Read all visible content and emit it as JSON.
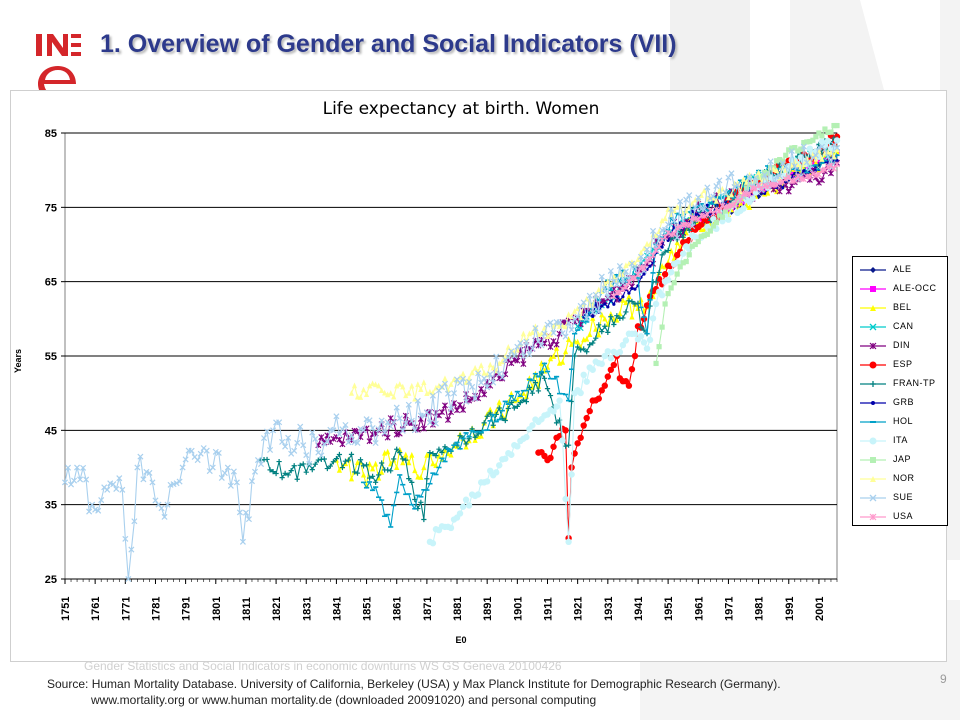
{
  "slide": {
    "title": "1. Overview of Gender and Social Indicators (VII)",
    "logo_text": "INE",
    "footer_note": "Gender Statistics and Social Indicators in economic downturns WS GS Geneva 20100426",
    "source_line1": "Source: Human Mortality Database. University of California, Berkeley (USA) y Max Planck Institute for Demographic Research (Germany).",
    "source_line2": "www.mortality.org or www.human  mortality.de (downloaded 20091020) and personal computing",
    "page_number": "9"
  },
  "chart_data": {
    "type": "line",
    "title": "Life expectancy at birth. Women",
    "xlabel": "E0",
    "ylabel": "Years",
    "xlim": [
      1751,
      2007
    ],
    "ylim": [
      25,
      85
    ],
    "yticks": [
      25,
      35,
      45,
      55,
      65,
      75,
      85
    ],
    "xticks": [
      "1751",
      "1761",
      "1771",
      "1781",
      "1791",
      "1801",
      "1811",
      "1821",
      "1831",
      "1841",
      "1851",
      "1861",
      "1871",
      "1881",
      "1891",
      "1901",
      "1911",
      "1921",
      "1931",
      "1941",
      "1951",
      "1961",
      "1971",
      "1981",
      "1991",
      "2001"
    ],
    "grid": "horizontal",
    "legend_position": "right",
    "series": [
      {
        "name": "ALE",
        "color": "#0a1a8c",
        "marker": "diamond",
        "start": 1956,
        "end": 2007,
        "anchors": [
          [
            1956,
            72
          ],
          [
            1970,
            74
          ],
          [
            1980,
            76.5
          ],
          [
            1990,
            78.5
          ],
          [
            2000,
            80.5
          ],
          [
            2007,
            82.3
          ]
        ],
        "noise": 0.3
      },
      {
        "name": "ALE-OCC",
        "color": "#ff00ff",
        "marker": "square",
        "start": 1956,
        "end": 2007,
        "anchors": [
          [
            1956,
            72.5
          ],
          [
            1970,
            74.5
          ],
          [
            1980,
            77
          ],
          [
            1990,
            79
          ],
          [
            2000,
            81.2
          ],
          [
            2007,
            82.5
          ]
        ],
        "noise": 0.3
      },
      {
        "name": "BEL",
        "color": "#ffff00",
        "marker": "triangle",
        "start": 1841,
        "end": 2007,
        "anchors": [
          [
            1841,
            41
          ],
          [
            1850,
            39
          ],
          [
            1860,
            41
          ],
          [
            1870,
            40
          ],
          [
            1880,
            43
          ],
          [
            1890,
            46
          ],
          [
            1900,
            49
          ],
          [
            1910,
            53
          ],
          [
            1920,
            57
          ],
          [
            1930,
            60
          ],
          [
            1940,
            62
          ],
          [
            1946,
            63
          ],
          [
            1950,
            67
          ],
          [
            1960,
            73
          ],
          [
            1970,
            75
          ],
          [
            1980,
            76.5
          ],
          [
            1990,
            79
          ],
          [
            2000,
            81
          ],
          [
            2007,
            82.5
          ]
        ],
        "noise": 1.6
      },
      {
        "name": "CAN",
        "color": "#00cccc",
        "marker": "x",
        "start": 1921,
        "end": 2007,
        "anchors": [
          [
            1921,
            59
          ],
          [
            1930,
            62
          ],
          [
            1940,
            66
          ],
          [
            1950,
            71
          ],
          [
            1960,
            74
          ],
          [
            1970,
            76.5
          ],
          [
            1980,
            79
          ],
          [
            1990,
            80.8
          ],
          [
            2000,
            82
          ],
          [
            2007,
            83
          ]
        ],
        "noise": 0.6
      },
      {
        "name": "DIN",
        "color": "#800080",
        "marker": "star",
        "start": 1835,
        "end": 2007,
        "anchors": [
          [
            1835,
            43
          ],
          [
            1845,
            44
          ],
          [
            1855,
            45
          ],
          [
            1865,
            46
          ],
          [
            1875,
            47
          ],
          [
            1885,
            49
          ],
          [
            1895,
            52
          ],
          [
            1905,
            56
          ],
          [
            1915,
            58
          ],
          [
            1925,
            61
          ],
          [
            1935,
            64
          ],
          [
            1945,
            68
          ],
          [
            1950,
            71
          ],
          [
            1960,
            74
          ],
          [
            1970,
            76
          ],
          [
            1980,
            77.5
          ],
          [
            1990,
            78
          ],
          [
            2000,
            79
          ],
          [
            2007,
            81
          ]
        ],
        "noise": 1.3
      },
      {
        "name": "ESP",
        "color": "#ff0000",
        "marker": "circle",
        "start": 1908,
        "end": 2007,
        "anchors": [
          [
            1908,
            42
          ],
          [
            1911,
            41
          ],
          [
            1914,
            44
          ],
          [
            1917,
            45
          ],
          [
            1918,
            30.5
          ],
          [
            1919,
            40
          ],
          [
            1922,
            44
          ],
          [
            1926,
            49
          ],
          [
            1930,
            51
          ],
          [
            1934,
            55
          ],
          [
            1935,
            52
          ],
          [
            1938,
            51
          ],
          [
            1940,
            55
          ],
          [
            1941,
            59
          ],
          [
            1943,
            60
          ],
          [
            1945,
            63
          ],
          [
            1947,
            64
          ],
          [
            1950,
            66
          ],
          [
            1955,
            69
          ],
          [
            1960,
            72
          ],
          [
            1965,
            73.5
          ],
          [
            1970,
            75
          ],
          [
            1980,
            78.5
          ],
          [
            1990,
            80.5
          ],
          [
            2000,
            82.5
          ],
          [
            2007,
            84.5
          ]
        ],
        "noise": 0.8
      },
      {
        "name": "FRAN-TP",
        "color": "#008080",
        "marker": "plus",
        "start": 1816,
        "end": 2007,
        "anchors": [
          [
            1816,
            41
          ],
          [
            1825,
            39
          ],
          [
            1835,
            41
          ],
          [
            1845,
            41
          ],
          [
            1855,
            39
          ],
          [
            1862,
            42
          ],
          [
            1866,
            38
          ],
          [
            1870,
            33
          ],
          [
            1872,
            42
          ],
          [
            1880,
            43
          ],
          [
            1890,
            46
          ],
          [
            1900,
            48
          ],
          [
            1910,
            52
          ],
          [
            1914,
            46
          ],
          [
            1918,
            43
          ],
          [
            1920,
            55
          ],
          [
            1930,
            59
          ],
          [
            1940,
            62
          ],
          [
            1944,
            58
          ],
          [
            1946,
            65
          ],
          [
            1950,
            69
          ],
          [
            1960,
            73
          ],
          [
            1970,
            75.5
          ],
          [
            1980,
            78
          ],
          [
            1990,
            80.5
          ],
          [
            2000,
            82.5
          ],
          [
            2007,
            84.2
          ]
        ],
        "noise": 1.2
      },
      {
        "name": "GRB",
        "color": "#0000aa",
        "marker": "dot",
        "start": 1922,
        "end": 2007,
        "anchors": [
          [
            1922,
            60
          ],
          [
            1930,
            62
          ],
          [
            1940,
            64
          ],
          [
            1950,
            71
          ],
          [
            1960,
            74
          ],
          [
            1970,
            75.5
          ],
          [
            1980,
            77
          ],
          [
            1990,
            78.5
          ],
          [
            2000,
            80
          ],
          [
            2007,
            81.3
          ]
        ],
        "noise": 0.8
      },
      {
        "name": "HOL",
        "color": "#00a0c8",
        "marker": "dash",
        "start": 1850,
        "end": 2007,
        "anchors": [
          [
            1850,
            38
          ],
          [
            1855,
            36
          ],
          [
            1859,
            32
          ],
          [
            1862,
            39
          ],
          [
            1866,
            35
          ],
          [
            1870,
            37
          ],
          [
            1875,
            40
          ],
          [
            1880,
            43
          ],
          [
            1890,
            45
          ],
          [
            1900,
            49
          ],
          [
            1910,
            54
          ],
          [
            1918,
            49
          ],
          [
            1920,
            58
          ],
          [
            1930,
            64
          ],
          [
            1940,
            67
          ],
          [
            1944,
            58
          ],
          [
            1947,
            70
          ],
          [
            1950,
            72
          ],
          [
            1960,
            75
          ],
          [
            1970,
            76.5
          ],
          [
            1980,
            79
          ],
          [
            1990,
            80.3
          ],
          [
            2000,
            80.7
          ],
          [
            2007,
            82
          ]
        ],
        "noise": 1.1
      },
      {
        "name": "ITA",
        "color": "#c8f4fa",
        "marker": "circle",
        "start": 1872,
        "end": 2007,
        "anchors": [
          [
            1872,
            30
          ],
          [
            1880,
            33
          ],
          [
            1890,
            38
          ],
          [
            1900,
            43
          ],
          [
            1910,
            47
          ],
          [
            1915,
            49
          ],
          [
            1918,
            30
          ],
          [
            1920,
            50
          ],
          [
            1930,
            55
          ],
          [
            1940,
            58
          ],
          [
            1944,
            56
          ],
          [
            1947,
            62
          ],
          [
            1950,
            65
          ],
          [
            1960,
            71
          ],
          [
            1970,
            74
          ],
          [
            1980,
            77
          ],
          [
            1990,
            80
          ],
          [
            2000,
            82.5
          ],
          [
            2007,
            84
          ]
        ],
        "noise": 1.0
      },
      {
        "name": "JAP",
        "color": "#b4f0b4",
        "marker": "square",
        "start": 1947,
        "end": 2007,
        "anchors": [
          [
            1947,
            54
          ],
          [
            1950,
            62
          ],
          [
            1955,
            67
          ],
          [
            1960,
            70
          ],
          [
            1970,
            74.5
          ],
          [
            1980,
            78.5
          ],
          [
            1990,
            82
          ],
          [
            2000,
            84.5
          ],
          [
            2007,
            86
          ]
        ],
        "noise": 0.5
      },
      {
        "name": "NOR",
        "color": "#ffff99",
        "marker": "triangle",
        "start": 1846,
        "end": 2007,
        "anchors": [
          [
            1846,
            50
          ],
          [
            1855,
            51
          ],
          [
            1865,
            50
          ],
          [
            1875,
            51
          ],
          [
            1885,
            52
          ],
          [
            1895,
            54
          ],
          [
            1905,
            58
          ],
          [
            1915,
            59
          ],
          [
            1925,
            62
          ],
          [
            1935,
            66
          ],
          [
            1945,
            70
          ],
          [
            1950,
            73.5
          ],
          [
            1960,
            76
          ],
          [
            1970,
            77
          ],
          [
            1980,
            79
          ],
          [
            1990,
            80
          ],
          [
            2000,
            81.5
          ],
          [
            2007,
            82.8
          ]
        ],
        "noise": 1.0
      },
      {
        "name": "SUE",
        "color": "#a9d0ee",
        "marker": "x",
        "start": 1751,
        "end": 2007,
        "anchors": [
          [
            1751,
            38
          ],
          [
            1755,
            40
          ],
          [
            1760,
            35
          ],
          [
            1765,
            37
          ],
          [
            1770,
            37
          ],
          [
            1772,
            25
          ],
          [
            1775,
            40
          ],
          [
            1780,
            38
          ],
          [
            1785,
            35
          ],
          [
            1790,
            40
          ],
          [
            1795,
            41
          ],
          [
            1800,
            40
          ],
          [
            1805,
            40
          ],
          [
            1808,
            38
          ],
          [
            1810,
            30
          ],
          [
            1815,
            41
          ],
          [
            1820,
            45
          ],
          [
            1825,
            44
          ],
          [
            1830,
            43
          ],
          [
            1835,
            42
          ],
          [
            1840,
            45
          ],
          [
            1850,
            45
          ],
          [
            1860,
            46
          ],
          [
            1870,
            47
          ],
          [
            1880,
            50
          ],
          [
            1890,
            52
          ],
          [
            1900,
            55
          ],
          [
            1910,
            58
          ],
          [
            1920,
            60
          ],
          [
            1930,
            64
          ],
          [
            1940,
            67
          ],
          [
            1950,
            72
          ],
          [
            1960,
            75
          ],
          [
            1970,
            77
          ],
          [
            1980,
            79
          ],
          [
            1990,
            80.5
          ],
          [
            2000,
            82
          ],
          [
            2007,
            83
          ]
        ],
        "noise": 2.3
      },
      {
        "name": "USA",
        "color": "#ff99cc",
        "marker": "star",
        "start": 1933,
        "end": 2007,
        "anchors": [
          [
            1933,
            63
          ],
          [
            1940,
            65.5
          ],
          [
            1950,
            71
          ],
          [
            1960,
            73.5
          ],
          [
            1970,
            75
          ],
          [
            1980,
            77.5
          ],
          [
            1990,
            78.8
          ],
          [
            2000,
            79.3
          ],
          [
            2007,
            80.8
          ]
        ],
        "noise": 0.4
      }
    ]
  }
}
